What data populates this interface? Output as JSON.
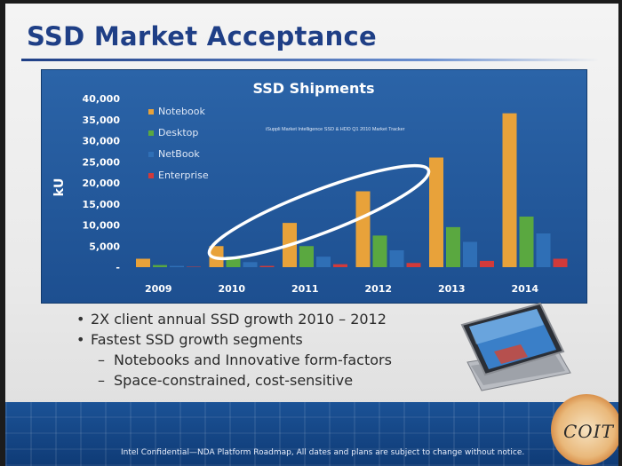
{
  "slide": {
    "title": "SSD Market Acceptance",
    "bullets": [
      {
        "level": 1,
        "text": "2X client annual SSD growth 2010 – 2012"
      },
      {
        "level": 1,
        "text": "Fastest SSD growth segments"
      },
      {
        "level": 2,
        "text": "Notebooks and Innovative form-factors"
      },
      {
        "level": 2,
        "text": "Space-constrained, cost-sensitive"
      }
    ],
    "footer": "Intel Confidential—NDA Platform Roadmap, All dates and plans are subject to change without notice.",
    "logo_text": "COIT"
  },
  "chart_data": {
    "type": "bar",
    "title": "SSD Shipments",
    "source_note": "iSuppli Market Intelligence SSD & HDD Q1 2010 Market Tracker",
    "ylabel": "kU",
    "xlabel": "",
    "categories": [
      "2009",
      "2010",
      "2011",
      "2012",
      "2013",
      "2014"
    ],
    "y_tick_labels": [
      "-",
      "5,000",
      "10,000",
      "15,000",
      "20,000",
      "25,000",
      "30,000",
      "35,000",
      "40,000"
    ],
    "ylim": [
      0,
      40000
    ],
    "grid": false,
    "legend_position": "top-left",
    "series": [
      {
        "name": "Notebook",
        "color": "#e8a23a",
        "values": [
          2000,
          5000,
          10500,
          18000,
          26000,
          36500
        ]
      },
      {
        "name": "Desktop",
        "color": "#5aa840",
        "values": [
          500,
          2500,
          5000,
          7500,
          9500,
          12000
        ]
      },
      {
        "name": "NetBook",
        "color": "#2f6fb6",
        "values": [
          300,
          1200,
          2500,
          4000,
          6000,
          8000
        ]
      },
      {
        "name": "Enterprise",
        "color": "#d23a3a",
        "values": [
          100,
          300,
          700,
          1000,
          1500,
          2000
        ]
      }
    ],
    "annotation": "ellipse highlighting 2010–2012 growth"
  }
}
